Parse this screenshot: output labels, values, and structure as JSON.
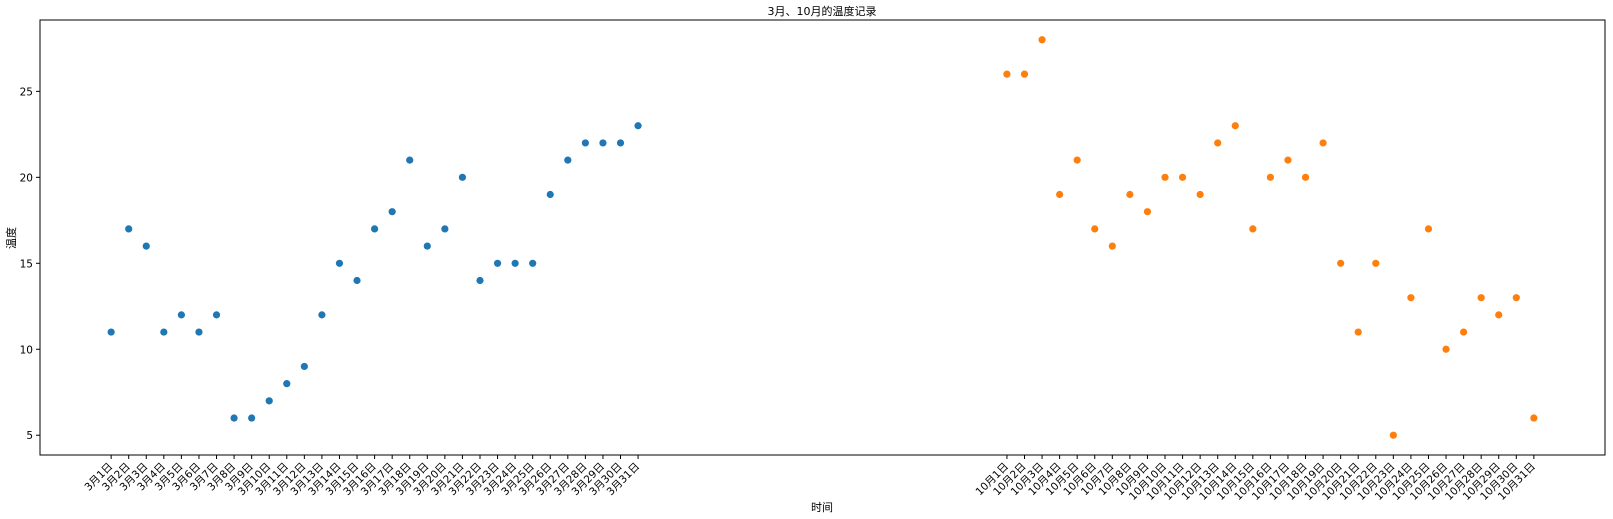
{
  "chart_data": {
    "type": "scatter",
    "title": "3月、10月的温度记录",
    "xlabel": "时间",
    "ylabel": "温度",
    "grid": false,
    "ylim": [
      3.85,
      29.15
    ],
    "yticks": [
      5,
      10,
      15,
      20,
      25
    ],
    "series": [
      {
        "color": "#1f77b4",
        "x": [
          1,
          2,
          3,
          4,
          5,
          6,
          7,
          8,
          9,
          10,
          11,
          12,
          13,
          14,
          15,
          16,
          17,
          18,
          19,
          20,
          21,
          22,
          23,
          24,
          25,
          26,
          27,
          28,
          29,
          30,
          31
        ],
        "x_labels": [
          "3月1日",
          "3月2日",
          "3月3日",
          "3月4日",
          "3月5日",
          "3月6日",
          "3月7日",
          "3月8日",
          "3月9日",
          "3月10日",
          "3月11日",
          "3月12日",
          "3月13日",
          "3月14日",
          "3月15日",
          "3月16日",
          "3月17日",
          "3月18日",
          "3月19日",
          "3月20日",
          "3月21日",
          "3月22日",
          "3月23日",
          "3月24日",
          "3月25日",
          "3月26日",
          "3月27日",
          "3月28日",
          "3月29日",
          "3月30日",
          "3月31日"
        ],
        "values": [
          11,
          17,
          16,
          11,
          12,
          11,
          12,
          6,
          6,
          7,
          8,
          9,
          12,
          15,
          14,
          17,
          18,
          21,
          16,
          17,
          20,
          14,
          15,
          15,
          15,
          19,
          21,
          22,
          22,
          22,
          23
        ]
      },
      {
        "color": "#ff7f0e",
        "x": [
          52,
          53,
          54,
          55,
          56,
          57,
          58,
          59,
          60,
          61,
          62,
          63,
          64,
          65,
          66,
          67,
          68,
          69,
          70,
          71,
          72,
          73,
          74,
          75,
          76,
          77,
          78,
          79,
          80,
          81,
          82
        ],
        "x_labels": [
          "10月1日",
          "10月2日",
          "10月3日",
          "10月4日",
          "10月5日",
          "10月6日",
          "10月7日",
          "10月8日",
          "10月9日",
          "10月10日",
          "10月11日",
          "10月12日",
          "10月13日",
          "10月14日",
          "10月15日",
          "10月16日",
          "10月17日",
          "10月18日",
          "10月19日",
          "10月20日",
          "10月21日",
          "10月22日",
          "10月23日",
          "10月24日",
          "10月25日",
          "10月26日",
          "10月27日",
          "10月28日",
          "10月29日",
          "10月30日",
          "10月31日"
        ],
        "values": [
          26,
          26,
          28,
          19,
          21,
          17,
          16,
          19,
          18,
          20,
          20,
          19,
          22,
          23,
          17,
          20,
          21,
          20,
          22,
          15,
          11,
          15,
          5,
          13,
          17,
          10,
          11,
          13,
          12,
          13,
          6
        ]
      }
    ]
  }
}
